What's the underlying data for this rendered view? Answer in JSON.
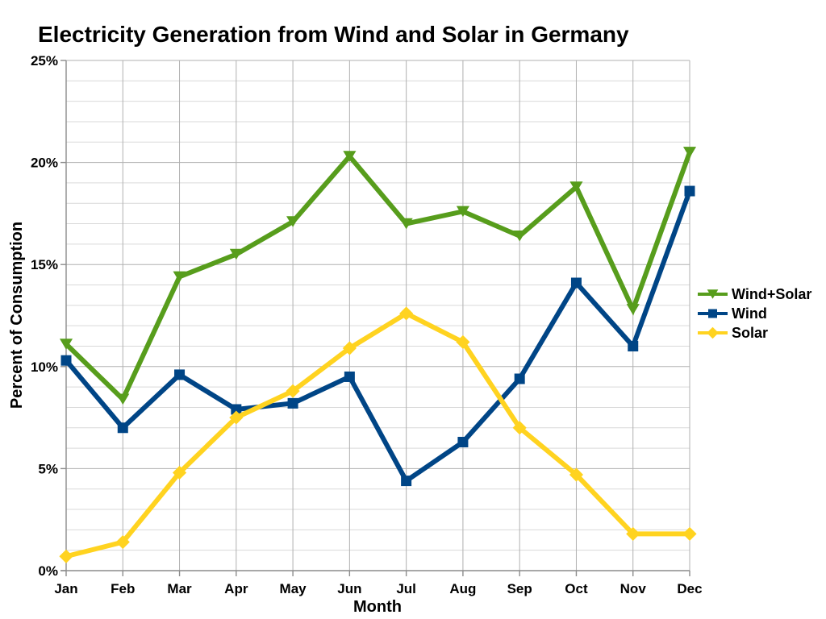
{
  "title": "Electricity Generation from Wind and Solar in Germany",
  "styles": {
    "background": "#FFFFFF",
    "text_color": "#000000",
    "axis_color": "#8C8C8C",
    "grid_major_color": "#B0B0B0",
    "grid_minor_color": "#D9D9D9",
    "series_colors": {
      "wind_solar": "#579D1C",
      "wind": "#004586",
      "solar": "#FFD320"
    }
  },
  "chart_data": {
    "type": "line",
    "title": "Electricity Generation from Wind and Solar in Germany",
    "xlabel": "Month",
    "ylabel": "Percent of Consumption",
    "categories": [
      "Jan",
      "Feb",
      "Mar",
      "Apr",
      "May",
      "Jun",
      "Jul",
      "Aug",
      "Sep",
      "Oct",
      "Nov",
      "Dec"
    ],
    "ylim": [
      0,
      25
    ],
    "y_major_step": 5,
    "y_minor_step": 1,
    "y_tick_labels": [
      "0%",
      "5%",
      "10%",
      "15%",
      "20%",
      "25%"
    ],
    "grid": "horizontal major+minor, vertical per category",
    "legend_position": "right",
    "series": [
      {
        "name": "Wind+Solar",
        "color": "#579D1C",
        "marker": "triangle-down",
        "values": [
          11.1,
          8.4,
          14.4,
          15.5,
          17.1,
          20.3,
          17.0,
          17.6,
          16.4,
          18.8,
          12.8,
          20.5
        ]
      },
      {
        "name": "Wind",
        "color": "#004586",
        "marker": "square",
        "values": [
          10.3,
          7.0,
          9.6,
          7.9,
          8.2,
          9.5,
          4.4,
          6.3,
          9.4,
          14.1,
          11.0,
          18.6
        ]
      },
      {
        "name": "Solar",
        "color": "#FFD320",
        "marker": "diamond",
        "values": [
          0.7,
          1.4,
          4.8,
          7.5,
          8.8,
          10.9,
          12.6,
          11.2,
          7.0,
          4.7,
          1.8,
          1.8
        ]
      }
    ]
  }
}
